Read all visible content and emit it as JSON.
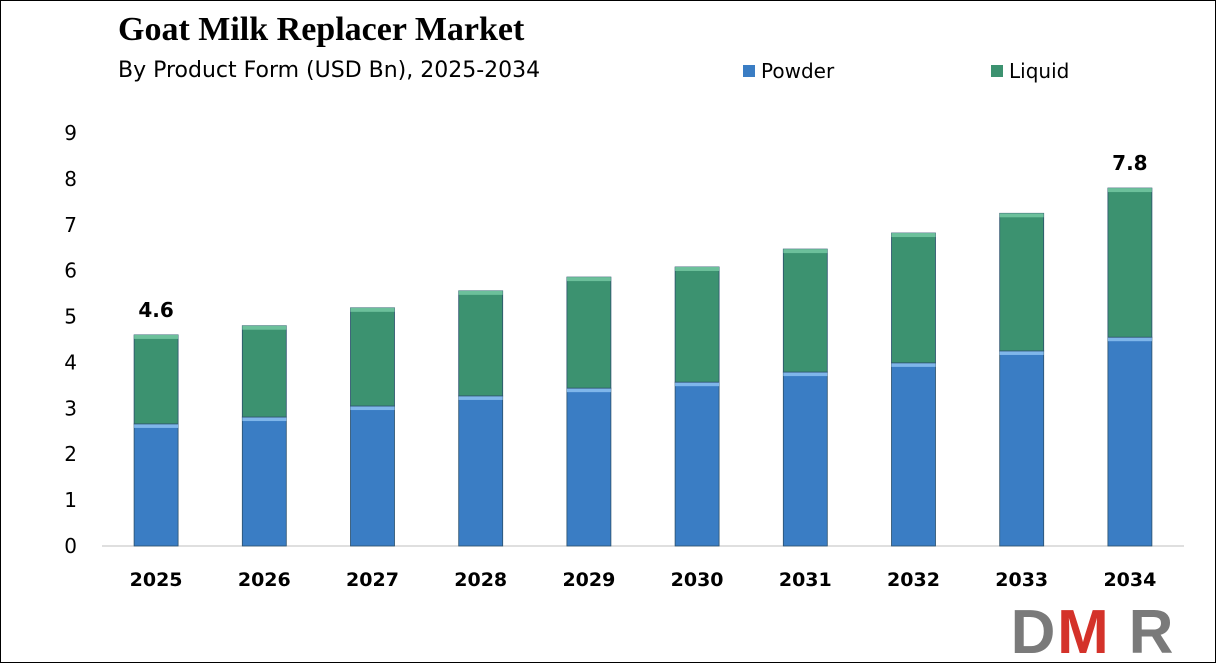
{
  "chart_data": {
    "type": "bar",
    "stacked": true,
    "title": "Goat Milk Replacer Market",
    "subtitle": "By Product Form (USD Bn), 2025-2034",
    "categories": [
      "2025",
      "2026",
      "2027",
      "2028",
      "2029",
      "2030",
      "2031",
      "2032",
      "2033",
      "2034"
    ],
    "series": [
      {
        "name": "Powder",
        "color": "#3a7dc4",
        "values": [
          2.66,
          2.81,
          3.05,
          3.27,
          3.44,
          3.57,
          3.79,
          3.99,
          4.25,
          4.55
        ]
      },
      {
        "name": "Liquid",
        "color": "#3c9270",
        "values": [
          1.94,
          1.99,
          2.14,
          2.29,
          2.42,
          2.51,
          2.68,
          2.83,
          3.0,
          3.25
        ]
      }
    ],
    "data_labels": [
      {
        "category": "2025",
        "text": "4.6"
      },
      {
        "category": "2034",
        "text": "7.8"
      }
    ],
    "yticks": [
      "0",
      "1",
      "2",
      "3",
      "4",
      "5",
      "6",
      "7",
      "8",
      "9"
    ],
    "ylim": [
      0,
      9
    ],
    "grid": false,
    "legend": "top-right"
  },
  "logo": {
    "text": "DMR",
    "colors": [
      "#7a7a7a",
      "#d4322a",
      "#7a7a7a"
    ]
  }
}
